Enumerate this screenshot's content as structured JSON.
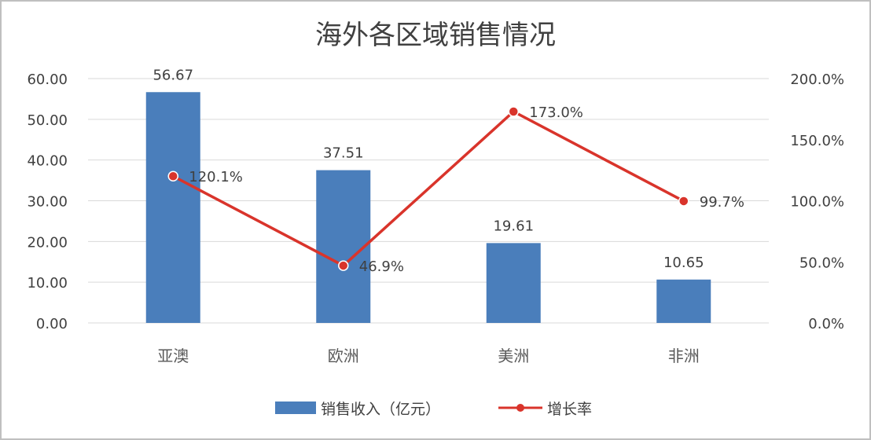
{
  "chart_data": {
    "type": "bar",
    "title": "海外各区域销售情况",
    "categories": [
      "亚澳",
      "欧洲",
      "美洲",
      "非洲"
    ],
    "series": [
      {
        "name": "销售收入（亿元）",
        "type": "bar",
        "axis": "left",
        "values": [
          56.67,
          37.51,
          19.61,
          10.65
        ],
        "labels": [
          "56.67",
          "37.51",
          "19.61",
          "10.65"
        ],
        "color": "#4a7ebb"
      },
      {
        "name": "增长率",
        "type": "line",
        "axis": "right",
        "values": [
          120.1,
          46.9,
          173.0,
          99.7
        ],
        "labels": [
          "120.1%",
          "46.9%",
          "173.0%",
          "99.7%"
        ],
        "color": "#d9342b"
      }
    ],
    "y_left": {
      "ylim": [
        0,
        60
      ],
      "ticks": [
        "0.00",
        "10.00",
        "20.00",
        "30.00",
        "40.00",
        "50.00",
        "60.00"
      ]
    },
    "y_right": {
      "ylim": [
        0,
        200
      ],
      "ticks": [
        "0.0%",
        "50.0%",
        "100.0%",
        "150.0%",
        "200.0%"
      ]
    },
    "grid": true,
    "legend_position": "bottom",
    "gridline_color": "#d9d9d9"
  }
}
